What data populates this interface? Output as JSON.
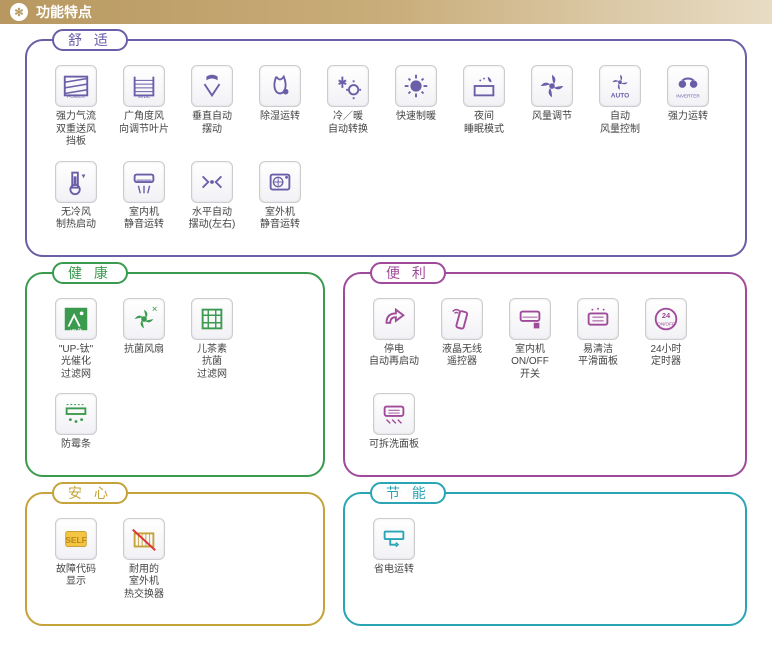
{
  "header": {
    "title": "功能特点"
  },
  "groups": {
    "comfort": {
      "title": "舒 适",
      "color": "#6a5ea8",
      "features": [
        {
          "icon": "power-dual",
          "label": "强力气流\n双重送风\n挡板"
        },
        {
          "icon": "wide-angle",
          "label": "广角度风\n向调节叶片"
        },
        {
          "icon": "vertical-swing",
          "label": "垂直自动\n摆动"
        },
        {
          "icon": "dehumidify",
          "label": "除湿运转"
        },
        {
          "icon": "cool-heat",
          "label": "冷／暖\n自动转换"
        },
        {
          "icon": "fast-heat",
          "label": "快速制暖"
        },
        {
          "icon": "night-mode",
          "label": "夜间\n睡眠模式"
        },
        {
          "icon": "fan-adjust",
          "label": "风量调节"
        },
        {
          "icon": "auto-fan",
          "label": "自动\n风量控制"
        },
        {
          "icon": "inverter",
          "label": "强力运转"
        },
        {
          "icon": "no-cold-heat",
          "label": "无冷风\n制热启动"
        },
        {
          "icon": "indoor-quiet",
          "label": "室内机\n静音运转"
        },
        {
          "icon": "horiz-swing",
          "label": "水平自动\n摆动(左右)"
        },
        {
          "icon": "outdoor-quiet",
          "label": "室外机\n静音运转"
        }
      ]
    },
    "health": {
      "title": "健 康",
      "color": "#3a9a4e",
      "features": [
        {
          "icon": "up-ti",
          "label": "\"UP-钛\"\n光催化\n过滤网"
        },
        {
          "icon": "anti-fan",
          "label": "抗菌风扇"
        },
        {
          "icon": "catechin",
          "label": "儿茶素\n抗菌\n过滤网"
        },
        {
          "icon": "anti-mold",
          "label": "防霉条"
        }
      ]
    },
    "convenience": {
      "title": "便 利",
      "color": "#a04a9a",
      "features": [
        {
          "icon": "auto-restart",
          "label": "停电\n自动再启动"
        },
        {
          "icon": "remote",
          "label": "液晶无线\n遥控器"
        },
        {
          "icon": "onoff-switch",
          "label": "室内机\nON/OFF\n开关"
        },
        {
          "icon": "easy-clean",
          "label": "易清洁\n平滑面板"
        },
        {
          "icon": "timer-24",
          "label": "24小时\n定时器"
        },
        {
          "icon": "removable-panel",
          "label": "可拆洗面板"
        }
      ]
    },
    "safety": {
      "title": "安 心",
      "color": "#c5a33a",
      "features": [
        {
          "icon": "self-diag",
          "label": "故障代码\n显示"
        },
        {
          "icon": "durable-hex",
          "label": "耐用的\n室外机\n热交换器"
        }
      ]
    },
    "energy": {
      "title": "节 能",
      "color": "#2aa5b5",
      "features": [
        {
          "icon": "eco-run",
          "label": "省电运转"
        }
      ]
    }
  }
}
